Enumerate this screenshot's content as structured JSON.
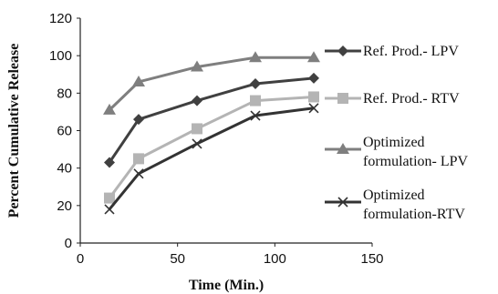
{
  "chart_data": {
    "type": "line",
    "xlabel": "Time (Min.)",
    "ylabel": "Percent Cumulative Release",
    "xlim": [
      0,
      150
    ],
    "ylim": [
      0,
      120
    ],
    "xticks": [
      0,
      50,
      100,
      150
    ],
    "yticks": [
      0,
      20,
      40,
      60,
      80,
      100,
      120
    ],
    "grid": false,
    "legend_position": "right",
    "x": [
      15,
      30,
      60,
      90,
      120
    ],
    "series": [
      {
        "name": "Ref. Prod.- LPV",
        "name_lines": [
          "Ref. Prod.- LPV"
        ],
        "values": [
          43,
          66,
          76,
          85,
          88
        ],
        "color": "#404040",
        "marker": "diamond"
      },
      {
        "name": "Ref. Prod.- RTV",
        "name_lines": [
          "Ref. Prod.- RTV"
        ],
        "values": [
          24,
          45,
          61,
          76,
          78
        ],
        "color": "#b4b4b4",
        "marker": "square"
      },
      {
        "name": "Optimized formulation- LPV",
        "name_lines": [
          "Optimized",
          "formulation- LPV"
        ],
        "values": [
          71,
          86,
          94,
          99,
          99
        ],
        "color": "#7f7f7f",
        "marker": "triangle"
      },
      {
        "name": "Optimized formulation-RTV",
        "name_lines": [
          "Optimized",
          "formulation-RTV"
        ],
        "values": [
          18,
          37,
          53,
          68,
          72
        ],
        "color": "#333333",
        "marker": "x"
      }
    ]
  }
}
